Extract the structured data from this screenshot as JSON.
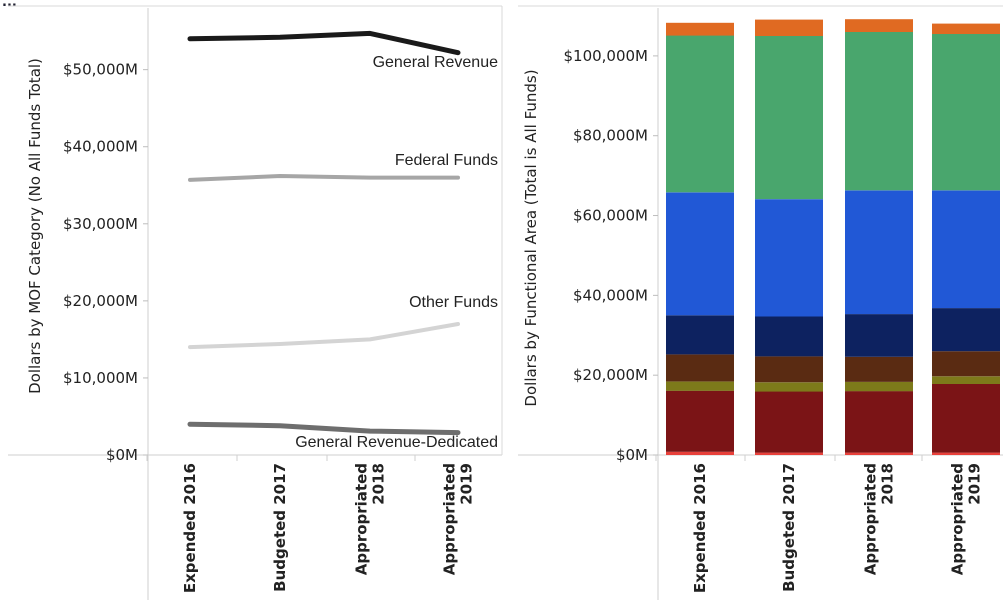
{
  "header_fragment": "...",
  "chart_data": [
    {
      "type": "line",
      "ylabel": "Dollars by MOF Category (No All Funds Total)",
      "ylim": [
        0,
        58000
      ],
      "yticks": [
        "$0M",
        "$10,000M",
        "$20,000M",
        "$30,000M",
        "$40,000M",
        "$50,000M"
      ],
      "ytick_values": [
        0,
        10000,
        20000,
        30000,
        40000,
        50000
      ],
      "categories": [
        "Expended 2016",
        "Budgeted 2017",
        "Appropriated 2018",
        "Appropriated 2019"
      ],
      "category_lines": [
        [
          "Expended 2016"
        ],
        [
          "Budgeted 2017"
        ],
        [
          "Appropriated",
          "2018"
        ],
        [
          "Appropriated",
          "2019"
        ]
      ],
      "grid": false,
      "series": [
        {
          "name": "General Revenue",
          "values": [
            54000,
            54200,
            54700,
            52200
          ],
          "color": "#1a1a1a",
          "width": 5
        },
        {
          "name": "Federal Funds",
          "values": [
            35700,
            36200,
            36000,
            36000
          ],
          "color": "#a6a6a6",
          "width": 4
        },
        {
          "name": "Other Funds",
          "values": [
            14000,
            14400,
            15000,
            17000
          ],
          "color": "#d4d4d4",
          "width": 4
        },
        {
          "name": "General Revenue-Dedicated",
          "values": [
            4000,
            3800,
            3100,
            2900
          ],
          "color": "#6e6e6e",
          "width": 5
        }
      ]
    },
    {
      "type": "bar",
      "stacked": true,
      "ylabel": "Dollars by Functional Area (Total is All Funds)",
      "ylim": [
        0,
        112000
      ],
      "yticks": [
        "$0M",
        "$20,000M",
        "$40,000M",
        "$60,000M",
        "$80,000M",
        "$100,000M"
      ],
      "ytick_values": [
        0,
        20000,
        40000,
        60000,
        80000,
        100000
      ],
      "categories": [
        "Expended 2016",
        "Budgeted 2017",
        "Appropriated 2018",
        "Appropriated 2019"
      ],
      "category_lines": [
        [
          "Expended 2016"
        ],
        [
          "Budgeted 2017"
        ],
        [
          "Appropriated",
          "2018"
        ],
        [
          "Appropriated",
          "2019"
        ]
      ],
      "grid": false,
      "colors": [
        "#e8403a",
        "#7b1416",
        "#7d7a1a",
        "#5a2b12",
        "#0d2260",
        "#2158d6",
        "#49a66d",
        "#e06a22"
      ],
      "segments": [
        [
          800,
          15300,
          2300,
          6800,
          9800,
          30800,
          39300,
          3200
        ],
        [
          600,
          15300,
          2300,
          6500,
          10000,
          29400,
          40900,
          4100
        ],
        [
          600,
          15400,
          2300,
          6300,
          10700,
          31000,
          39700,
          3200
        ],
        [
          600,
          17200,
          1900,
          6300,
          10800,
          29500,
          39200,
          2600
        ]
      ]
    }
  ]
}
